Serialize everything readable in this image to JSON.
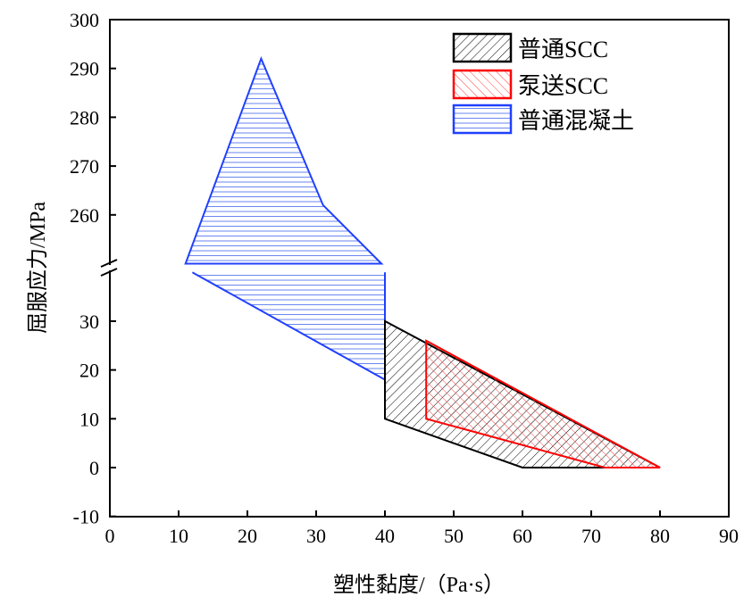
{
  "chart_data": {
    "type": "area",
    "xlabel": "塑性黏度/（Pa·s）",
    "ylabel": "屈服应力/MPa",
    "xlim": [
      0,
      90
    ],
    "xticks": [
      0,
      10,
      20,
      30,
      40,
      50,
      60,
      70,
      80,
      90
    ],
    "y_axis_break": true,
    "ylim_lower": [
      -10,
      40
    ],
    "ylim_upper": [
      250,
      300
    ],
    "yticks_lower": [
      -10,
      0,
      10,
      20,
      30
    ],
    "yticks_upper": [
      260,
      270,
      280,
      290,
      300
    ],
    "legend_position": "top-right",
    "series": [
      {
        "name": "普通SCC",
        "color": "#000000",
        "hatch": "forward-diagonal",
        "polygon": [
          [
            40,
            30
          ],
          [
            80,
            0
          ],
          [
            60,
            0
          ],
          [
            40,
            10
          ]
        ]
      },
      {
        "name": "泵送SCC",
        "color": "#ff0000",
        "hatch": "back-diagonal",
        "polygon": [
          [
            46,
            26
          ],
          [
            80,
            0
          ],
          [
            72,
            0
          ],
          [
            46,
            10
          ]
        ]
      },
      {
        "name": "普通混凝土",
        "color": "#2040ff",
        "hatch": "horizontal",
        "polygon_upper": [
          [
            11,
            250
          ],
          [
            22,
            292
          ],
          [
            31,
            262
          ],
          [
            39.5,
            250
          ]
        ],
        "polygon_lower": [
          [
            12,
            40
          ],
          [
            40,
            40
          ],
          [
            40,
            18
          ]
        ]
      }
    ]
  }
}
